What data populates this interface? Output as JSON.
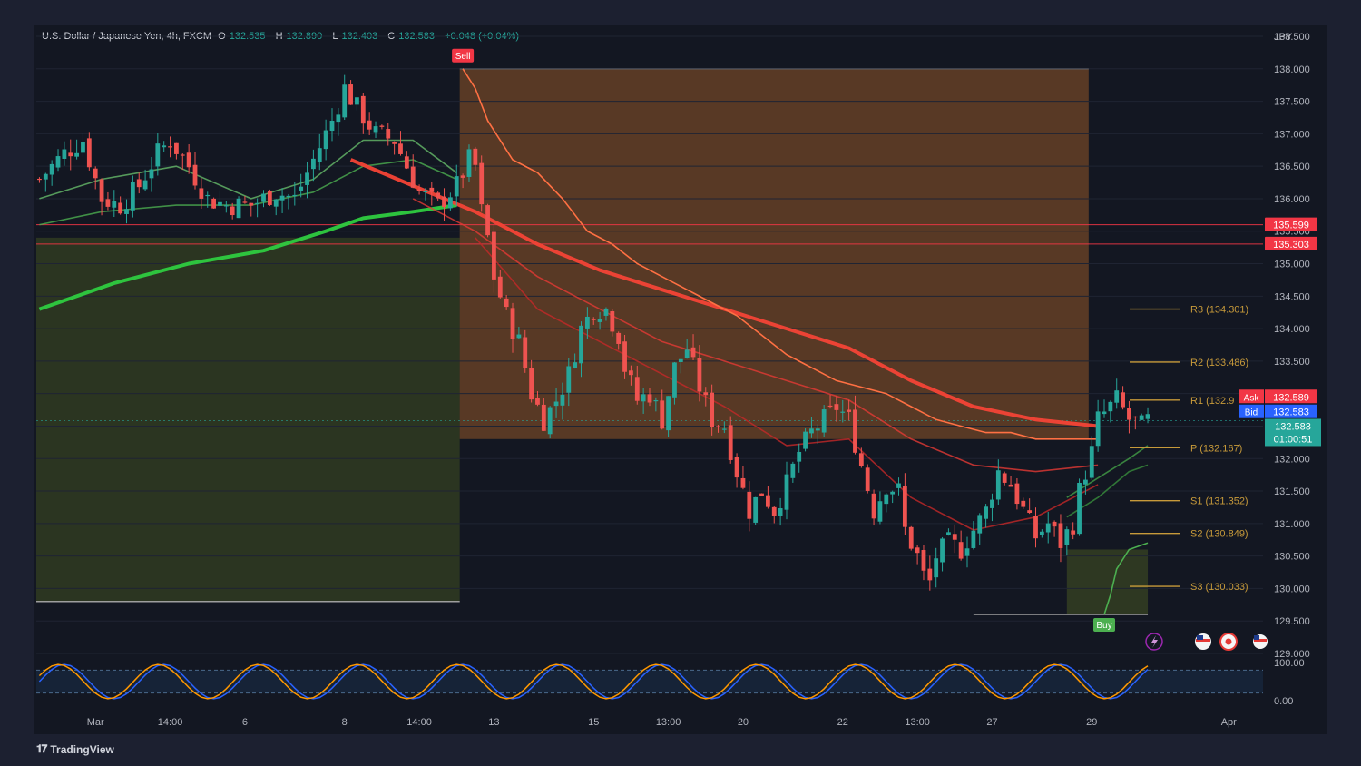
{
  "header": {
    "symbol": "U.S. Dollar / Japanese Yen, 4h, FXCM",
    "open_label": "O",
    "open": "132.535",
    "high_label": "H",
    "high": "132.890",
    "low_label": "L",
    "low": "132.403",
    "close_label": "C",
    "close": "132.583",
    "change": "+0.048 (+0.04%)"
  },
  "currency": "JPY",
  "brand": "TradingView",
  "colors": {
    "bull": "#26a69a",
    "bear": "#ef5350",
    "background": "#131722",
    "ema_fast": "#ef5350",
    "ema_green": "#2ecc40",
    "supertrend_down": "#ff7043",
    "sell_zone": "#b86a2a",
    "buy_zone": "#4a5a22",
    "pivot": "#c79a3a"
  },
  "chart_data": {
    "type": "candlestick",
    "timeframe": "4h",
    "y_axis": {
      "ylim": [
        129.0,
        138.5
      ],
      "ticks": [
        "138.500",
        "138.000",
        "137.500",
        "137.000",
        "136.500",
        "136.000",
        "135.500",
        "135.000",
        "134.500",
        "134.000",
        "133.500",
        "133.000",
        "132.500",
        "132.000",
        "131.500",
        "131.000",
        "130.500",
        "130.000",
        "129.500",
        "129.000"
      ]
    },
    "x_axis": {
      "ticks": [
        {
          "label": "Mar",
          "index": 9
        },
        {
          "label": "14:00",
          "index": 21
        },
        {
          "label": "6",
          "index": 33
        },
        {
          "label": "8",
          "index": 49
        },
        {
          "label": "14:00",
          "index": 61
        },
        {
          "label": "13",
          "index": 73
        },
        {
          "label": "15",
          "index": 89
        },
        {
          "label": "13:00",
          "index": 101
        },
        {
          "label": "20",
          "index": 113
        },
        {
          "label": "22",
          "index": 129
        },
        {
          "label": "13:00",
          "index": 141
        },
        {
          "label": "27",
          "index": 153
        },
        {
          "label": "29",
          "index": 169
        },
        {
          "label": "Apr",
          "index": 191
        }
      ]
    },
    "bar_count": 197,
    "path": [
      [
        0,
        136.3
      ],
      [
        4,
        136.7
      ],
      [
        7,
        136.9
      ],
      [
        10,
        136.0
      ],
      [
        13,
        135.9
      ],
      [
        16,
        136.2
      ],
      [
        19,
        136.7
      ],
      [
        21,
        136.9
      ],
      [
        24,
        136.5
      ],
      [
        27,
        136.0
      ],
      [
        30,
        135.9
      ],
      [
        34,
        135.9
      ],
      [
        38,
        136.1
      ],
      [
        41,
        136.0
      ],
      [
        44,
        136.6
      ],
      [
        47,
        137.2
      ],
      [
        49,
        137.7
      ],
      [
        51,
        137.4
      ],
      [
        54,
        137.0
      ],
      [
        57,
        136.9
      ],
      [
        59,
        136.5
      ],
      [
        61,
        136.1
      ],
      [
        64,
        135.9
      ],
      [
        67,
        136.2
      ],
      [
        69,
        136.6
      ],
      [
        70,
        136.5
      ],
      [
        71,
        135.8
      ],
      [
        72,
        135.4
      ],
      [
        73,
        134.8
      ],
      [
        75,
        134.2
      ],
      [
        77,
        133.8
      ],
      [
        79,
        133.0
      ],
      [
        81,
        132.6
      ],
      [
        83,
        132.9
      ],
      [
        85,
        133.3
      ],
      [
        87,
        134.0
      ],
      [
        89,
        134.3
      ],
      [
        91,
        134.3
      ],
      [
        93,
        133.9
      ],
      [
        94,
        133.4
      ],
      [
        96,
        132.9
      ],
      [
        98,
        133.0
      ],
      [
        100,
        132.6
      ],
      [
        102,
        133.4
      ],
      [
        104,
        133.7
      ],
      [
        106,
        133.1
      ],
      [
        108,
        132.6
      ],
      [
        110,
        132.5
      ],
      [
        112,
        131.8
      ],
      [
        114,
        131.2
      ],
      [
        116,
        131.5
      ],
      [
        118,
        131.2
      ],
      [
        120,
        131.6
      ],
      [
        122,
        132.1
      ],
      [
        124,
        132.4
      ],
      [
        126,
        132.6
      ],
      [
        128,
        132.8
      ],
      [
        130,
        132.6
      ],
      [
        132,
        131.9
      ],
      [
        134,
        131.2
      ],
      [
        136,
        131.6
      ],
      [
        138,
        131.5
      ],
      [
        139,
        130.9
      ],
      [
        141,
        130.5
      ],
      [
        142,
        130.2
      ],
      [
        143,
        130.1
      ],
      [
        144,
        130.5
      ],
      [
        146,
        130.7
      ],
      [
        148,
        130.6
      ],
      [
        150,
        130.9
      ],
      [
        152,
        131.2
      ],
      [
        154,
        131.8
      ],
      [
        156,
        131.6
      ],
      [
        158,
        131.2
      ],
      [
        160,
        130.8
      ],
      [
        162,
        131.0
      ],
      [
        164,
        130.7
      ],
      [
        166,
        131.0
      ],
      [
        167,
        131.5
      ],
      [
        169,
        132.1
      ],
      [
        170,
        132.6
      ],
      [
        172,
        132.8
      ],
      [
        173,
        132.9
      ],
      [
        175,
        132.6
      ],
      [
        177,
        132.5
      ],
      [
        178,
        132.583
      ]
    ],
    "series": [
      {
        "name": "EMA (slow)",
        "color": "#2ecc40",
        "points": [
          [
            0,
            134.3
          ],
          [
            12,
            134.7
          ],
          [
            24,
            135.0
          ],
          [
            36,
            135.2
          ],
          [
            46,
            135.5
          ],
          [
            52,
            135.7
          ],
          [
            60,
            135.8
          ],
          [
            67,
            135.9
          ]
        ]
      },
      {
        "name": "EMA (mid)",
        "color": "#4caf50",
        "points": [
          [
            0,
            135.6
          ],
          [
            10,
            135.8
          ],
          [
            22,
            135.9
          ],
          [
            34,
            135.9
          ],
          [
            44,
            136.1
          ],
          [
            52,
            136.5
          ],
          [
            60,
            136.6
          ],
          [
            67,
            136.3
          ]
        ]
      },
      {
        "name": "EMA (fast)",
        "color": "#66bb6a",
        "points": [
          [
            0,
            136.0
          ],
          [
            10,
            136.3
          ],
          [
            22,
            136.5
          ],
          [
            34,
            136.0
          ],
          [
            44,
            136.3
          ],
          [
            52,
            136.9
          ],
          [
            60,
            136.9
          ],
          [
            67,
            136.4
          ]
        ]
      },
      {
        "name": "EMA red (slow)",
        "color": "#f44336",
        "points": [
          [
            50,
            136.6
          ],
          [
            60,
            136.2
          ],
          [
            70,
            135.8
          ],
          [
            80,
            135.3
          ],
          [
            90,
            134.9
          ],
          [
            100,
            134.6
          ],
          [
            110,
            134.3
          ],
          [
            120,
            134.0
          ],
          [
            130,
            133.7
          ],
          [
            140,
            133.2
          ],
          [
            150,
            132.8
          ],
          [
            160,
            132.6
          ],
          [
            170,
            132.5
          ]
        ]
      },
      {
        "name": "EMA red (mid)",
        "color": "#e53935",
        "points": [
          [
            60,
            136.0
          ],
          [
            70,
            135.5
          ],
          [
            80,
            134.8
          ],
          [
            90,
            134.3
          ],
          [
            100,
            133.8
          ],
          [
            110,
            133.5
          ],
          [
            120,
            133.2
          ],
          [
            130,
            132.9
          ],
          [
            140,
            132.3
          ],
          [
            150,
            131.9
          ],
          [
            160,
            131.8
          ],
          [
            170,
            131.9
          ]
        ]
      },
      {
        "name": "EMA red (fast)",
        "color": "#c62828",
        "points": [
          [
            70,
            135.4
          ],
          [
            80,
            134.3
          ],
          [
            90,
            133.8
          ],
          [
            100,
            133.3
          ],
          [
            110,
            132.8
          ],
          [
            120,
            132.2
          ],
          [
            130,
            132.3
          ],
          [
            140,
            131.4
          ],
          [
            150,
            130.9
          ],
          [
            160,
            131.1
          ],
          [
            170,
            131.6
          ]
        ]
      },
      {
        "name": "EMA green (right)",
        "color": "#43a047",
        "points": [
          [
            165,
            131.4
          ],
          [
            170,
            131.7
          ],
          [
            175,
            132.0
          ],
          [
            178,
            132.2
          ]
        ]
      },
      {
        "name": "EMA green (right, mid)",
        "color": "#388e3c",
        "points": [
          [
            165,
            131.1
          ],
          [
            170,
            131.4
          ],
          [
            175,
            131.8
          ],
          [
            178,
            131.9
          ]
        ]
      }
    ],
    "supertrend_down": [
      [
        68,
        138.0
      ],
      [
        70,
        137.7
      ],
      [
        72,
        137.2
      ],
      [
        76,
        136.6
      ],
      [
        80,
        136.4
      ],
      [
        84,
        136.0
      ],
      [
        88,
        135.5
      ],
      [
        92,
        135.3
      ],
      [
        96,
        135.0
      ],
      [
        100,
        134.8
      ],
      [
        104,
        134.6
      ],
      [
        108,
        134.4
      ],
      [
        112,
        134.2
      ],
      [
        116,
        133.9
      ],
      [
        120,
        133.6
      ],
      [
        124,
        133.4
      ],
      [
        128,
        133.2
      ],
      [
        132,
        133.1
      ],
      [
        136,
        133.0
      ],
      [
        140,
        132.8
      ],
      [
        144,
        132.6
      ],
      [
        148,
        132.5
      ],
      [
        152,
        132.4
      ],
      [
        156,
        132.4
      ],
      [
        160,
        132.3
      ],
      [
        164,
        132.3
      ],
      [
        168,
        132.3
      ],
      [
        170,
        132.3
      ]
    ],
    "supertrend_up": [
      [
        171,
        129.6
      ],
      [
        172,
        129.9
      ],
      [
        173,
        130.3
      ],
      [
        175,
        130.6
      ],
      [
        178,
        130.7
      ]
    ],
    "sell_zone": {
      "from": 68,
      "to": 168,
      "top": 138.0,
      "bottom": 132.3
    },
    "buy_zone": {
      "from": 0,
      "to": 67,
      "top": 135.4,
      "bottom": 129.8
    },
    "levels": [
      {
        "name": "price_line_1",
        "value": 135.599,
        "label": "135.599",
        "color": "#f23645"
      },
      {
        "name": "price_line_2",
        "value": 135.303,
        "label": "135.303",
        "color": "#f23645"
      }
    ],
    "pivots": [
      {
        "label": "R3 (134.301)",
        "value": 134.301
      },
      {
        "label": "R2 (133.486)",
        "value": 133.486
      },
      {
        "label": "R1 (132.9",
        "value": 132.9
      },
      {
        "label": "P (132.167)",
        "value": 132.167
      },
      {
        "label": "S1 (131.352)",
        "value": 131.352
      },
      {
        "label": "S2 (130.849)",
        "value": 130.849
      },
      {
        "label": "S3 (130.033)",
        "value": 130.033
      }
    ],
    "signals": [
      {
        "label": "Sell",
        "index": 68,
        "value": 138.0,
        "color": "#f23645"
      },
      {
        "label": "Buy",
        "index": 171,
        "value": 129.6,
        "color": "#4caf50"
      }
    ],
    "quotes": {
      "ask_label": "Ask",
      "ask": "132.589",
      "bid_label": "Bid",
      "bid": "132.583",
      "last": "132.583",
      "countdown": "01:00:51"
    },
    "oscillator": {
      "ticks": [
        "100.00",
        "0.00"
      ],
      "ylim": [
        0,
        100
      ],
      "band": [
        20,
        80
      ],
      "phases": [
        0.0,
        0.9
      ],
      "period": 16
    }
  }
}
